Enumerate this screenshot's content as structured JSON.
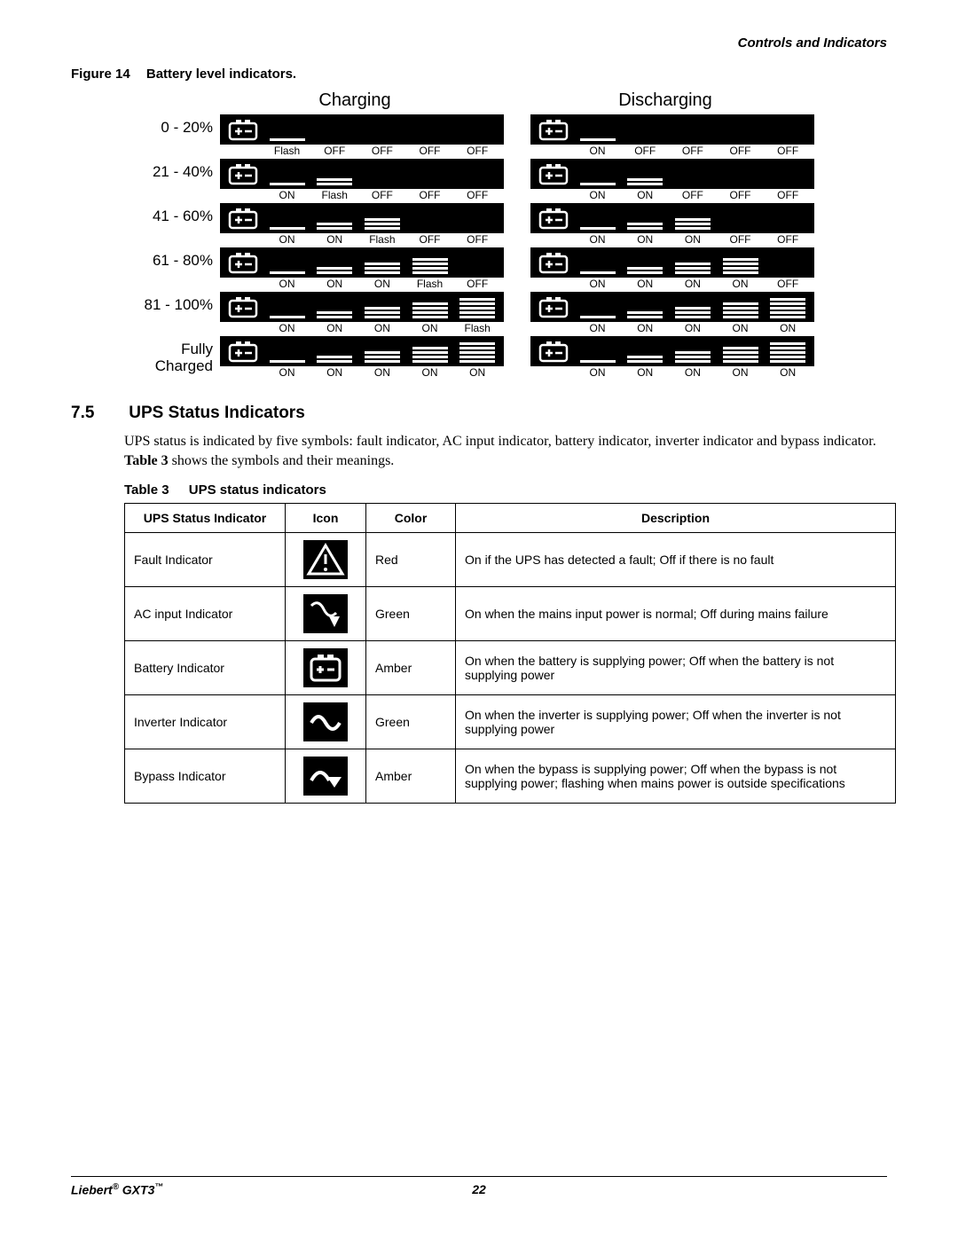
{
  "header": {
    "section_title": "Controls and Indicators"
  },
  "figure": {
    "label": "Figure 14",
    "title": "Battery level indicators.",
    "col_charging": "Charging",
    "col_discharging": "Discharging",
    "rows": [
      {
        "label": "0 - 20%",
        "charging": {
          "bars": [
            1,
            0,
            0,
            0,
            0
          ],
          "states": [
            "Flash",
            "OFF",
            "OFF",
            "OFF",
            "OFF"
          ]
        },
        "discharging": {
          "bars": [
            1,
            0,
            0,
            0,
            0
          ],
          "states": [
            "ON",
            "OFF",
            "OFF",
            "OFF",
            "OFF"
          ]
        }
      },
      {
        "label": "21 - 40%",
        "charging": {
          "bars": [
            1,
            2,
            0,
            0,
            0
          ],
          "states": [
            "ON",
            "Flash",
            "OFF",
            "OFF",
            "OFF"
          ]
        },
        "discharging": {
          "bars": [
            1,
            2,
            0,
            0,
            0
          ],
          "states": [
            "ON",
            "ON",
            "OFF",
            "OFF",
            "OFF"
          ]
        }
      },
      {
        "label": "41 - 60%",
        "charging": {
          "bars": [
            1,
            2,
            3,
            0,
            0
          ],
          "states": [
            "ON",
            "ON",
            "Flash",
            "OFF",
            "OFF"
          ]
        },
        "discharging": {
          "bars": [
            1,
            2,
            3,
            0,
            0
          ],
          "states": [
            "ON",
            "ON",
            "ON",
            "OFF",
            "OFF"
          ]
        }
      },
      {
        "label": "61 - 80%",
        "charging": {
          "bars": [
            1,
            2,
            3,
            4,
            0
          ],
          "states": [
            "ON",
            "ON",
            "ON",
            "Flash",
            "OFF"
          ]
        },
        "discharging": {
          "bars": [
            1,
            2,
            3,
            4,
            0
          ],
          "states": [
            "ON",
            "ON",
            "ON",
            "ON",
            "OFF"
          ]
        }
      },
      {
        "label": "81 - 100%",
        "charging": {
          "bars": [
            1,
            2,
            3,
            4,
            5
          ],
          "states": [
            "ON",
            "ON",
            "ON",
            "ON",
            "Flash"
          ]
        },
        "discharging": {
          "bars": [
            1,
            2,
            3,
            4,
            5
          ],
          "states": [
            "ON",
            "ON",
            "ON",
            "ON",
            "ON"
          ]
        }
      },
      {
        "label": "Fully Charged",
        "charging": {
          "bars": [
            1,
            2,
            3,
            4,
            5
          ],
          "states": [
            "ON",
            "ON",
            "ON",
            "ON",
            "ON"
          ]
        },
        "discharging": {
          "bars": [
            1,
            2,
            3,
            4,
            5
          ],
          "states": [
            "ON",
            "ON",
            "ON",
            "ON",
            "ON"
          ]
        }
      }
    ]
  },
  "section": {
    "number": "7.5",
    "title": "UPS Status Indicators",
    "body_a": "UPS status is indicated by five symbols: fault indicator, AC input indicator, battery indicator, inverter indicator and bypass indicator. ",
    "body_bold": "Table 3",
    "body_b": " shows the symbols and their meanings."
  },
  "table": {
    "label": "Table 3",
    "title": "UPS status indicators",
    "headers": {
      "c1": "UPS Status Indicator",
      "c2": "Icon",
      "c3": "Color",
      "c4": "Description"
    },
    "rows": [
      {
        "name": "Fault Indicator",
        "icon": "fault",
        "color": "Red",
        "desc": "On if the UPS has detected a fault; Off if there is no fault"
      },
      {
        "name": "AC input Indicator",
        "icon": "acinput",
        "color": "Green",
        "desc": "On when the mains input power is normal; Off during mains failure"
      },
      {
        "name": "Battery Indicator",
        "icon": "battery",
        "color": "Amber",
        "desc": "On when the battery is supplying power; Off when the battery is not supplying power"
      },
      {
        "name": "Inverter Indicator",
        "icon": "inverter",
        "color": "Green",
        "desc": "On when the inverter is supplying power; Off when the inverter is not supplying power"
      },
      {
        "name": "Bypass Indicator",
        "icon": "bypass",
        "color": "Amber",
        "desc": "On when the bypass is supplying power; Off when the bypass is not supplying power; flashing when mains power is outside specifications"
      }
    ]
  },
  "footer": {
    "brand": "Liebert",
    "reg": "®",
    "model": " GXT3",
    "tm": "™",
    "page": "22"
  }
}
